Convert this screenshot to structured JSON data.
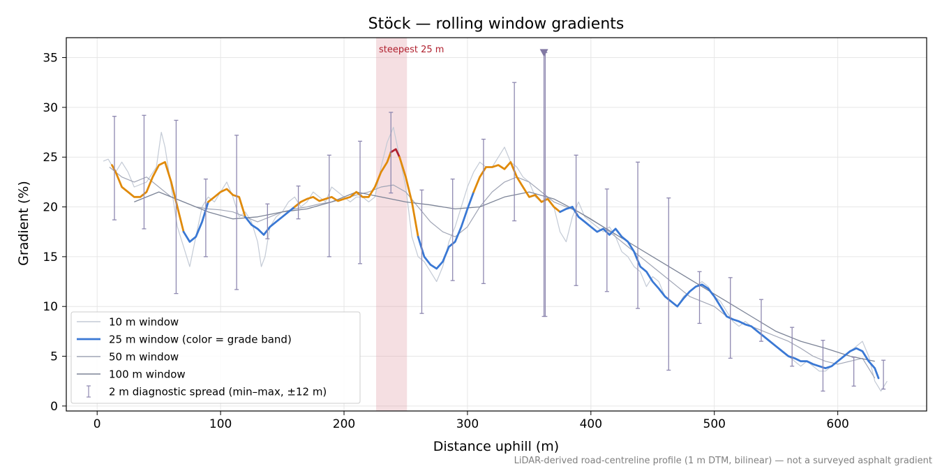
{
  "chart_data": {
    "type": "line",
    "title": "Stöck — rolling window gradients",
    "xlabel": "Distance uphill (m)",
    "ylabel": "Gradient (%)",
    "xlim": [
      -25,
      672
    ],
    "ylim": [
      -0.5,
      37
    ],
    "x_ticks": [
      0,
      100,
      200,
      300,
      400,
      500,
      600
    ],
    "y_ticks": [
      0,
      5,
      10,
      15,
      20,
      25,
      30,
      35
    ],
    "grid": true,
    "legend_position": "lower-left",
    "footnote": "LiDAR-derived road-centreline profile (1 m DTM, bilinear) — not a surveyed asphalt gradient",
    "highlight": {
      "label": "steepest 25 m",
      "x_start": 226,
      "x_end": 251,
      "color": "#dc8c96"
    },
    "marker": {
      "x": 362,
      "y": 35.5,
      "color": "#8279a4"
    },
    "grade_band_colors": {
      "below_20": "#3a78d4",
      "20_to_25": "#e08a0a",
      "above_25": "#b0202e"
    },
    "series": [
      {
        "name": "10 m window",
        "color": "#c3cad5",
        "width": 1.2,
        "x": [
          5,
          9,
          15,
          20,
          25,
          30,
          40,
          48,
          52,
          55,
          60,
          65,
          70,
          75,
          80,
          85,
          90,
          95,
          100,
          105,
          110,
          115,
          120,
          125,
          130,
          133,
          136,
          140,
          145,
          150,
          155,
          160,
          165,
          170,
          175,
          180,
          185,
          190,
          195,
          200,
          205,
          210,
          215,
          220,
          225,
          230,
          235,
          240,
          245,
          250,
          255,
          260,
          265,
          270,
          275,
          280,
          285,
          290,
          295,
          300,
          305,
          310,
          315,
          320,
          325,
          330,
          335,
          340,
          345,
          350,
          355,
          360,
          365,
          370,
          375,
          380,
          385,
          390,
          395,
          400,
          405,
          410,
          415,
          420,
          425,
          430,
          435,
          440,
          445,
          450,
          455,
          460,
          465,
          470,
          475,
          480,
          485,
          490,
          495,
          500,
          505,
          510,
          515,
          520,
          525,
          530,
          535,
          540,
          545,
          550,
          555,
          560,
          565,
          570,
          575,
          580,
          585,
          590,
          595,
          600,
          605,
          610,
          615,
          620,
          625,
          630,
          635,
          640
        ],
        "values": [
          24.6,
          24.8,
          23.5,
          24.5,
          23.5,
          22.0,
          22.5,
          24.0,
          27.5,
          26.0,
          22.0,
          18.0,
          16.0,
          14.0,
          17.0,
          20.0,
          21.0,
          20.5,
          21.5,
          22.5,
          21.0,
          19.0,
          19.5,
          18.5,
          16.5,
          14.0,
          15.0,
          18.0,
          19.0,
          19.5,
          20.5,
          21.0,
          20.0,
          20.5,
          21.5,
          21.0,
          20.5,
          22.0,
          21.5,
          21.0,
          20.5,
          21.0,
          21.0,
          20.5,
          21.0,
          24.0,
          26.5,
          28.0,
          25.0,
          22.0,
          17.0,
          15.0,
          14.5,
          13.5,
          12.5,
          14.0,
          16.5,
          18.0,
          20.0,
          22.0,
          23.5,
          24.5,
          24.0,
          24.0,
          25.0,
          26.0,
          24.5,
          24.0,
          23.0,
          22.5,
          21.0,
          20.5,
          21.0,
          20.0,
          17.5,
          16.5,
          19.0,
          20.5,
          19.0,
          18.5,
          18.0,
          17.5,
          18.0,
          17.0,
          15.5,
          15.0,
          14.0,
          13.5,
          12.0,
          13.0,
          12.5,
          11.0,
          10.5,
          10.0,
          11.0,
          11.5,
          12.0,
          12.5,
          12.0,
          11.0,
          10.5,
          9.5,
          8.5,
          8.0,
          8.5,
          8.0,
          7.5,
          7.0,
          6.5,
          6.0,
          5.5,
          5.0,
          4.5,
          4.0,
          4.5,
          4.0,
          3.5,
          3.5,
          4.0,
          4.5,
          5.0,
          5.5,
          6.0,
          6.5,
          5.0,
          2.5,
          1.5,
          2.5
        ]
      },
      {
        "name": "50 m window",
        "color": "#a0a5b5",
        "width": 1.2,
        "x": [
          10,
          20,
          30,
          40,
          50,
          60,
          70,
          80,
          90,
          100,
          110,
          120,
          130,
          140,
          150,
          160,
          170,
          180,
          190,
          200,
          210,
          220,
          230,
          240,
          250,
          260,
          270,
          280,
          290,
          300,
          310,
          320,
          330,
          340,
          350,
          360,
          370,
          380,
          390,
          400,
          410,
          420,
          430,
          440,
          450,
          460,
          470,
          480,
          490,
          500,
          510,
          520,
          530,
          540,
          550,
          560,
          570,
          580,
          590,
          600,
          610,
          620,
          630
        ],
        "values": [
          24.0,
          23.0,
          22.5,
          23.0,
          22.0,
          21.0,
          20.5,
          20.0,
          19.8,
          19.7,
          19.5,
          19.0,
          18.5,
          19.0,
          19.5,
          19.8,
          20.0,
          20.3,
          20.5,
          20.8,
          21.2,
          21.5,
          22.0,
          22.2,
          21.5,
          20.0,
          18.5,
          17.5,
          17.0,
          18.0,
          20.0,
          21.5,
          22.5,
          23.0,
          22.5,
          21.5,
          20.5,
          20.0,
          19.5,
          18.8,
          18.0,
          17.0,
          16.0,
          15.0,
          14.0,
          13.0,
          12.0,
          11.0,
          10.5,
          10.0,
          9.0,
          8.5,
          8.0,
          7.5,
          7.0,
          6.5,
          5.8,
          5.0,
          4.5,
          4.2,
          4.5,
          4.8,
          2.8
        ]
      },
      {
        "name": "100 m window",
        "color": "#7b8396",
        "width": 1.3,
        "x": [
          30,
          50,
          70,
          90,
          110,
          130,
          150,
          170,
          190,
          210,
          230,
          250,
          270,
          290,
          310,
          330,
          350,
          370,
          390,
          410,
          430,
          450,
          470,
          490,
          510,
          530,
          550,
          570,
          590,
          610,
          630
        ],
        "values": [
          20.5,
          21.5,
          20.5,
          19.5,
          18.8,
          19.0,
          19.5,
          19.8,
          20.5,
          21.5,
          21.0,
          20.5,
          20.2,
          19.8,
          20.0,
          21.0,
          21.5,
          20.8,
          19.5,
          18.0,
          16.5,
          15.0,
          13.5,
          12.0,
          10.5,
          9.0,
          7.5,
          6.5,
          5.8,
          5.0,
          4.5
        ]
      },
      {
        "name": "25 m window (color = grade band)",
        "color": "#3a78d4",
        "width": 2.8,
        "x": [
          12,
          15,
          20,
          25,
          30,
          35,
          40,
          45,
          50,
          55,
          60,
          65,
          70,
          75,
          80,
          85,
          90,
          95,
          100,
          105,
          110,
          115,
          120,
          125,
          130,
          135,
          140,
          145,
          150,
          155,
          160,
          165,
          170,
          175,
          180,
          185,
          190,
          195,
          200,
          205,
          210,
          215,
          220,
          225,
          230,
          235,
          238,
          242,
          245,
          250,
          255,
          260,
          265,
          270,
          275,
          280,
          285,
          290,
          295,
          300,
          305,
          310,
          315,
          320,
          325,
          330,
          335,
          340,
          345,
          350,
          355,
          360,
          365,
          370,
          375,
          380,
          385,
          390,
          395,
          400,
          405,
          410,
          415,
          420,
          425,
          430,
          435,
          440,
          445,
          450,
          455,
          460,
          465,
          470,
          475,
          480,
          485,
          490,
          495,
          500,
          505,
          510,
          515,
          520,
          525,
          530,
          535,
          540,
          545,
          550,
          555,
          560,
          565,
          570,
          575,
          580,
          585,
          590,
          595,
          600,
          605,
          610,
          615,
          620,
          625,
          630,
          633
        ],
        "values": [
          24.2,
          23.5,
          22.0,
          21.5,
          21.0,
          21.0,
          21.5,
          23.0,
          24.2,
          24.5,
          22.5,
          20.0,
          17.5,
          16.5,
          17.0,
          18.5,
          20.5,
          21.0,
          21.5,
          21.8,
          21.2,
          21.0,
          19.0,
          18.2,
          17.8,
          17.2,
          18.0,
          18.5,
          19.0,
          19.5,
          20.0,
          20.5,
          20.8,
          21.0,
          20.6,
          20.8,
          21.0,
          20.6,
          20.8,
          21.0,
          21.5,
          21.0,
          21.0,
          22.0,
          23.5,
          24.5,
          25.5,
          25.8,
          25.0,
          23.0,
          20.5,
          17.0,
          15.0,
          14.2,
          13.8,
          14.5,
          16.0,
          16.5,
          18.0,
          19.8,
          21.5,
          23.0,
          24.0,
          24.0,
          24.2,
          23.8,
          24.5,
          23.0,
          22.0,
          21.0,
          21.2,
          20.5,
          20.8,
          20.0,
          19.5,
          19.8,
          20.0,
          19.0,
          18.5,
          18.0,
          17.5,
          17.8,
          17.2,
          17.8,
          17.0,
          16.5,
          15.5,
          14.0,
          13.5,
          12.5,
          11.8,
          11.0,
          10.5,
          10.0,
          10.8,
          11.5,
          12.0,
          12.2,
          11.8,
          11.0,
          10.0,
          9.0,
          8.7,
          8.5,
          8.2,
          8.0,
          7.5,
          7.0,
          6.5,
          6.0,
          5.5,
          5.0,
          4.8,
          4.5,
          4.5,
          4.2,
          4.0,
          3.8,
          4.0,
          4.5,
          5.0,
          5.5,
          5.8,
          5.5,
          4.5,
          3.8,
          2.8
        ]
      }
    ],
    "error_bars": {
      "name": "2 m diagnostic spread (min–max, ±12 m)",
      "color": "#8e88b0",
      "x": [
        14,
        38,
        64,
        88,
        113,
        138,
        163,
        188,
        213,
        238,
        263,
        288,
        313,
        338,
        362,
        363,
        388,
        413,
        438,
        463,
        488,
        513,
        538,
        563,
        588,
        613,
        637
      ],
      "low": [
        18.7,
        17.8,
        11.3,
        15.0,
        11.7,
        16.8,
        18.8,
        15.0,
        14.3,
        21.4,
        9.3,
        12.6,
        12.3,
        18.6,
        9.0,
        9.0,
        12.1,
        11.5,
        9.8,
        3.6,
        8.3,
        4.8,
        6.5,
        4.0,
        1.5,
        2.0,
        1.7
      ],
      "high": [
        29.1,
        29.2,
        28.7,
        22.8,
        27.2,
        20.3,
        22.1,
        25.2,
        26.6,
        29.5,
        21.7,
        22.8,
        26.8,
        32.5,
        35.5,
        35.5,
        25.2,
        21.8,
        24.5,
        20.9,
        13.5,
        12.9,
        10.7,
        7.9,
        6.6,
        4.9,
        4.6
      ]
    }
  }
}
